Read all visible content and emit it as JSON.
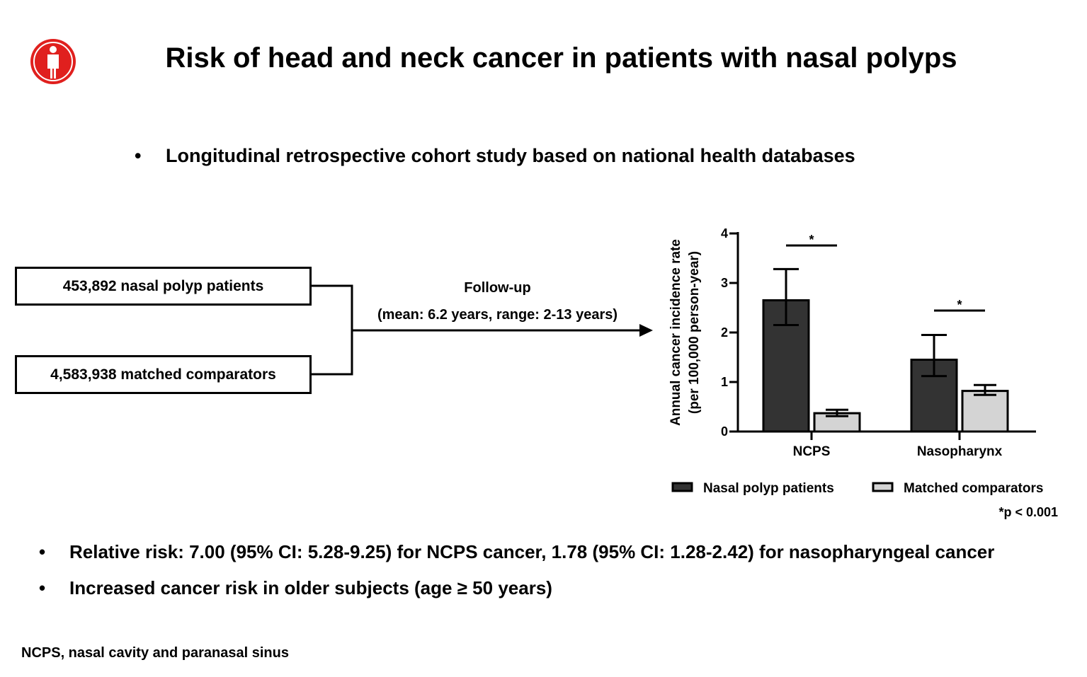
{
  "slide": {
    "title": "Risk of head and neck cancer in patients with nasal polyps",
    "logo_icon": "person-icon",
    "logo_color": "#e0201e",
    "bullet_symbol": "•",
    "study_bullet": "Longitudinal retrospective cohort study based on national health databases",
    "cohorts": {
      "patients_label": "453,892 nasal polyp patients",
      "comparators_label": "4,583,938 matched comparators"
    },
    "followup": {
      "title": "Follow-up",
      "detail": "(mean: 6.2 years, range: 2-13 years)"
    },
    "findings": [
      "Relative risk: 7.00 (95% CI: 5.28-9.25) for NCPS cancer, 1.78 (95% CI: 1.28-2.42) for nasopharyngeal cancer",
      "Increased cancer risk in older subjects (age ≥ 50 years)"
    ],
    "footnote": "NCPS, nasal cavity and paranasal sinus"
  },
  "chart_data": {
    "type": "bar",
    "categories": [
      "NCPS",
      "Nasopharynx"
    ],
    "series": [
      {
        "name": "Nasal polyp patients",
        "color": "#333333",
        "values": [
          2.65,
          1.45
        ],
        "error_low": [
          2.15,
          1.12
        ],
        "error_high": [
          3.28,
          1.95
        ]
      },
      {
        "name": "Matched comparators",
        "color": "#d4d4d4",
        "values": [
          0.37,
          0.82
        ],
        "error_low": [
          0.31,
          0.74
        ],
        "error_high": [
          0.44,
          0.94
        ]
      }
    ],
    "ylabel": "Annual cancer incidence rate",
    "ylabel_sub": "(per 100,000 person-year)",
    "ylim": [
      0,
      4
    ],
    "yticks": [
      "0",
      "1",
      "2",
      "3",
      "4"
    ],
    "significance_marker": "*",
    "significance_note": "*p < 0.001",
    "legend_position": "bottom",
    "grid": false
  }
}
